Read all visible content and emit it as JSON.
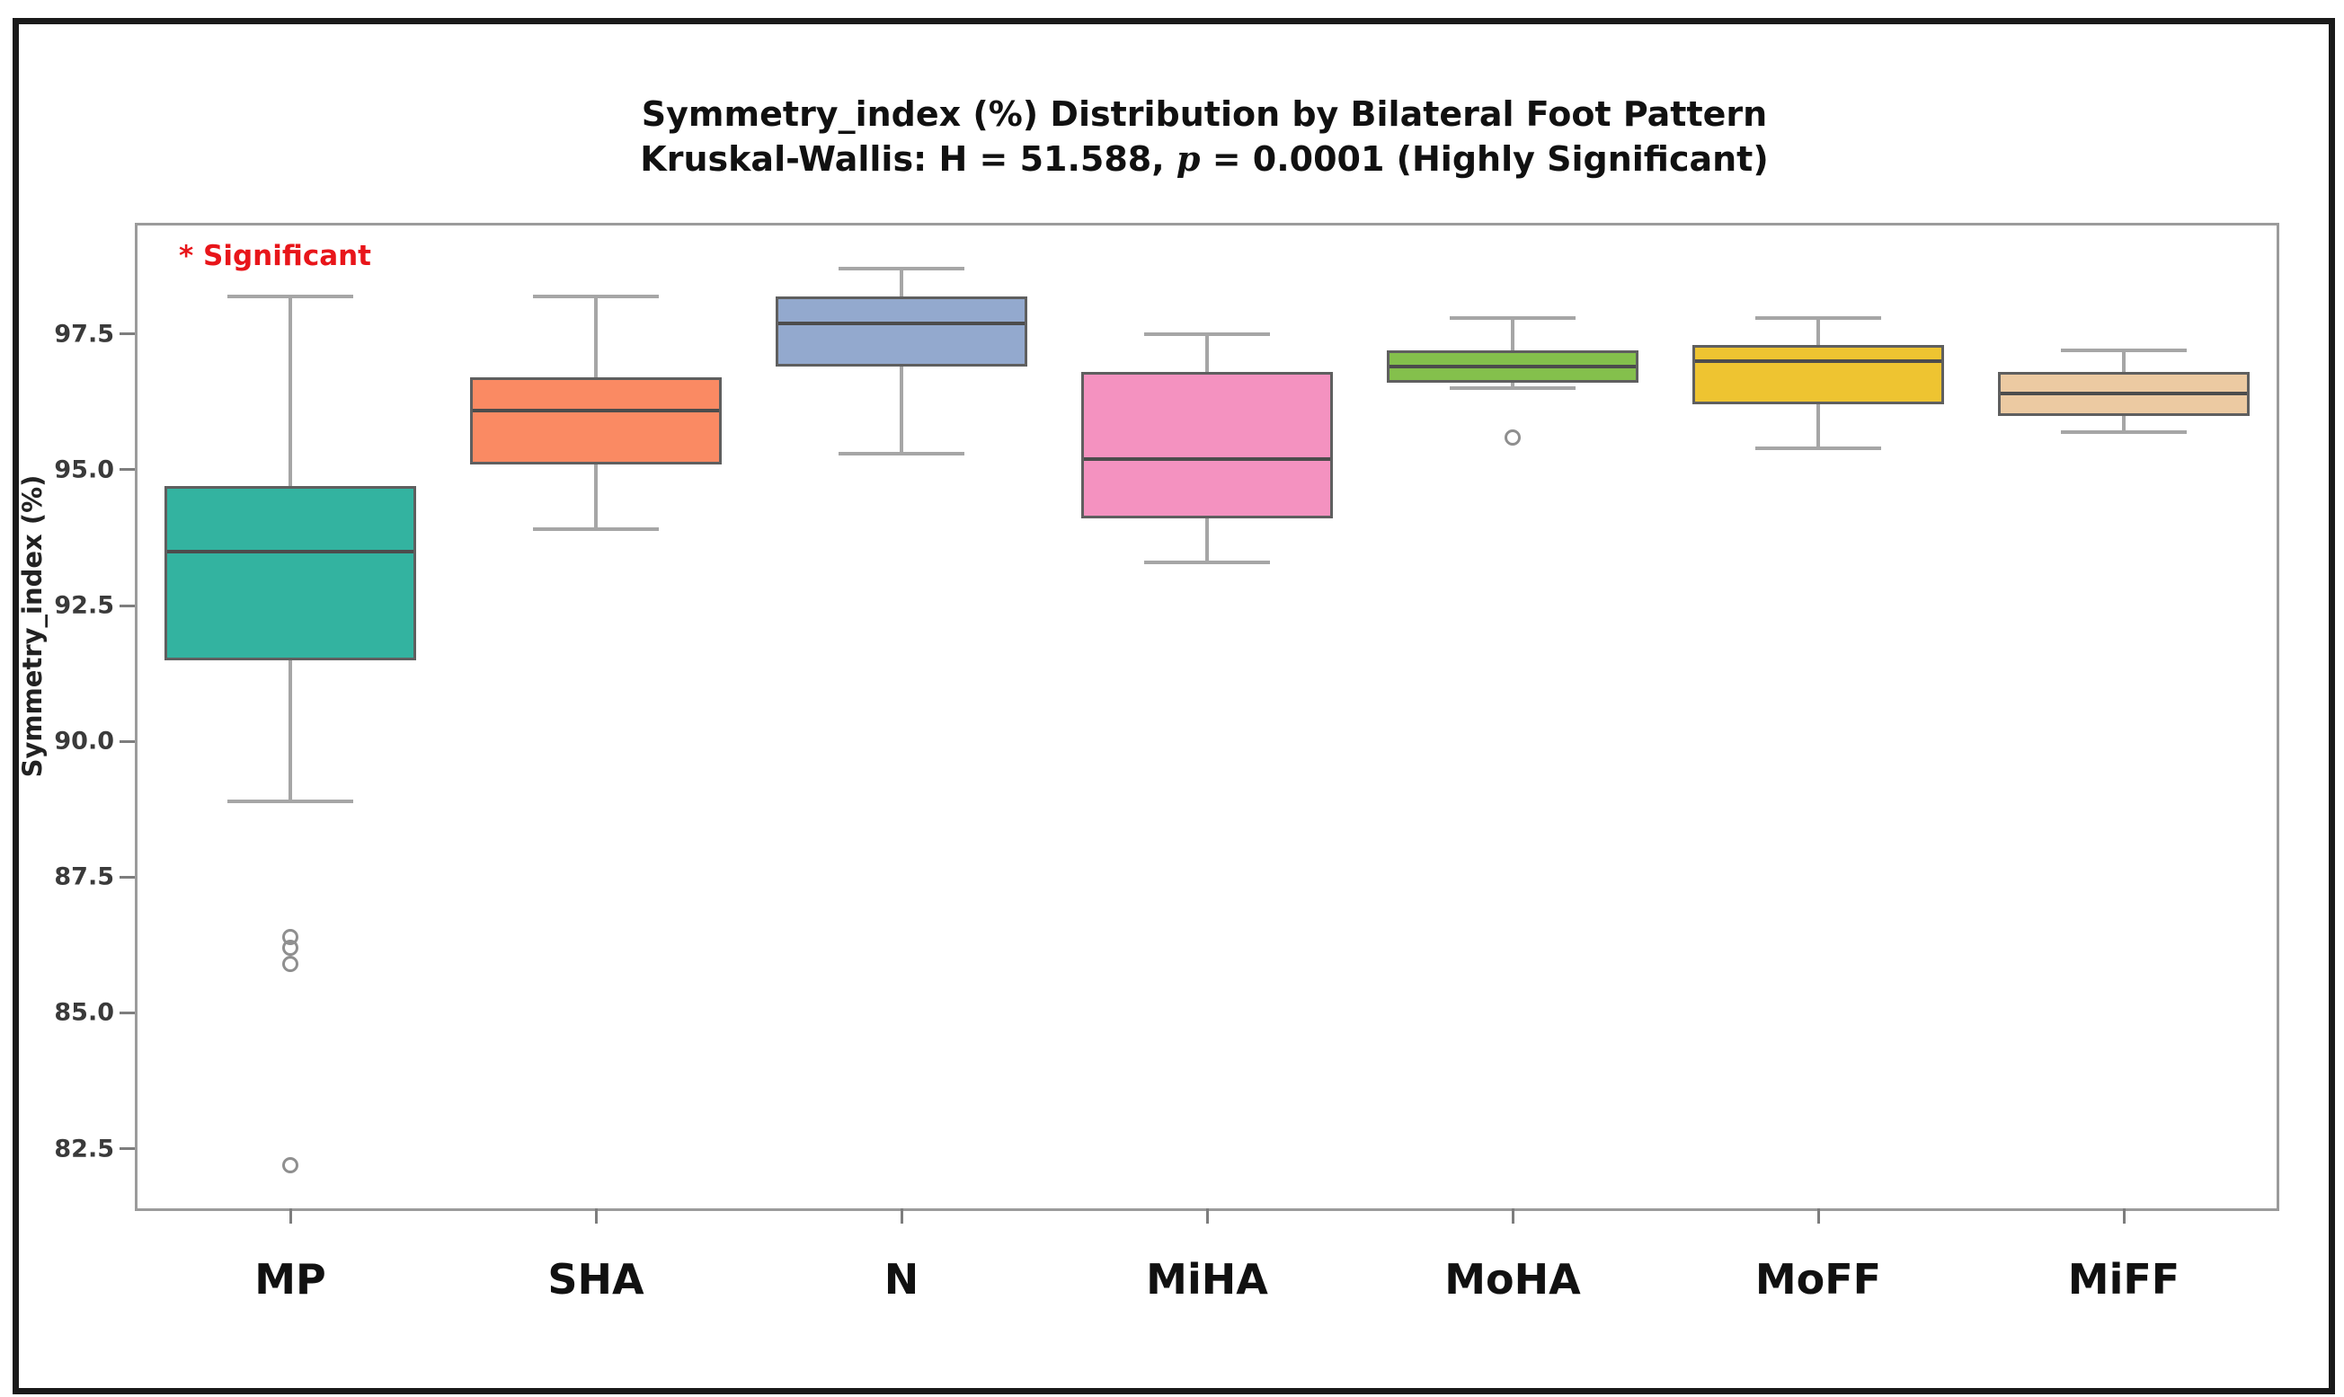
{
  "figure": {
    "title_line1": "Symmetry_index (%) Distribution by Bilateral Foot Pattern",
    "subtitle_prefix": "Kruskal-Wallis: H = 51.588, ",
    "subtitle_p": "p",
    "subtitle_suffix": " = 0.0001 (Highly Significant)",
    "annotation": "* Significant",
    "annotation_color": "#e8151a",
    "ylabel": "Symmetry_index (%)"
  },
  "chart_data": {
    "type": "boxplot",
    "title": "Symmetry_index (%) Distribution by Bilateral Foot Pattern",
    "subtitle": "Kruskal-Wallis: H = 51.588, p = 0.0001 (Highly Significant)",
    "kruskal_wallis": {
      "H": 51.588,
      "p": 0.0001,
      "significance": "Highly Significant"
    },
    "xlabel": "",
    "ylabel": "Symmetry_index (%)",
    "ylim": [
      81.4,
      99.5
    ],
    "yticks": [
      97.5,
      95.0,
      92.5,
      90.0,
      87.5,
      85.0,
      82.5
    ],
    "grid": false,
    "legend": "none",
    "categories": [
      "MP",
      "SHA",
      "N",
      "MiHA",
      "MoHA",
      "MoFF",
      "MiFF"
    ],
    "groups": [
      {
        "label": "MP",
        "color": "#33b3a0",
        "whisker_low": 88.9,
        "q1": 91.5,
        "median": 93.5,
        "q3": 94.7,
        "whisker_high": 98.2,
        "outliers": [
          86.4,
          86.2,
          85.9,
          82.2
        ]
      },
      {
        "label": "SHA",
        "color": "#fa8a63",
        "whisker_low": 93.9,
        "q1": 95.1,
        "median": 96.1,
        "q3": 96.7,
        "whisker_high": 98.2,
        "outliers": []
      },
      {
        "label": "N",
        "color": "#93a9ce",
        "whisker_low": 95.3,
        "q1": 96.9,
        "median": 97.7,
        "q3": 98.2,
        "whisker_high": 98.7,
        "outliers": []
      },
      {
        "label": "MiHA",
        "color": "#f492c0",
        "whisker_low": 93.3,
        "q1": 94.1,
        "median": 95.2,
        "q3": 96.8,
        "whisker_high": 97.5,
        "outliers": []
      },
      {
        "label": "MoHA",
        "color": "#84c04c",
        "whisker_low": 96.5,
        "q1": 96.6,
        "median": 96.9,
        "q3": 97.2,
        "whisker_high": 97.8,
        "outliers": [
          95.6
        ]
      },
      {
        "label": "MoFF",
        "color": "#eec431",
        "whisker_low": 95.4,
        "q1": 96.2,
        "median": 97.0,
        "q3": 97.3,
        "whisker_high": 97.8,
        "outliers": []
      },
      {
        "label": "MiFF",
        "color": "#eccaa2",
        "whisker_low": 95.7,
        "q1": 96.0,
        "median": 96.4,
        "q3": 96.8,
        "whisker_high": 97.2,
        "outliers": []
      }
    ]
  }
}
